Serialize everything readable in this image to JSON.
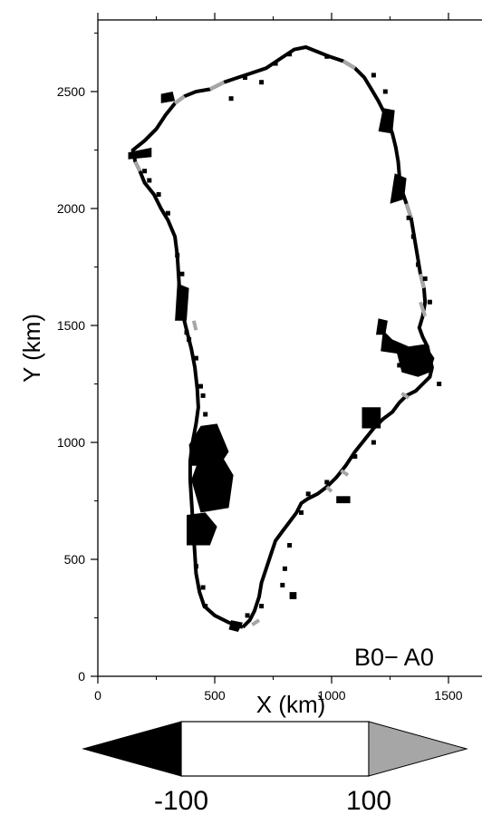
{
  "map": {
    "panel_label": "B0− A0",
    "x_axis": {
      "title": "X (km)",
      "range_km": [
        0,
        1650
      ],
      "ticks": [
        {
          "value": 0,
          "label": "0"
        },
        {
          "value": 500,
          "label": "500"
        },
        {
          "value": 1000,
          "label": "1000"
        },
        {
          "value": 1500,
          "label": "1500"
        }
      ]
    },
    "y_axis": {
      "title": "Y (km)",
      "range_km": [
        0,
        2780
      ],
      "ticks": [
        {
          "value": 0,
          "label": "0"
        },
        {
          "value": 500,
          "label": "500"
        },
        {
          "value": 1000,
          "label": "1000"
        },
        {
          "value": 1500,
          "label": "1500"
        },
        {
          "value": 2000,
          "label": "2000"
        },
        {
          "value": 2500,
          "label": "2500"
        }
      ]
    },
    "colors": {
      "below": "#000000",
      "above": "#a6a6a6",
      "neutral": "#ffffff",
      "outline": "#000000"
    },
    "coast_black_km": [
      [
        620,
        210
      ],
      [
        560,
        230
      ],
      [
        500,
        260
      ],
      [
        455,
        300
      ],
      [
        435,
        360
      ],
      [
        420,
        440
      ],
      [
        415,
        520
      ],
      [
        410,
        600
      ],
      [
        405,
        680
      ],
      [
        400,
        760
      ],
      [
        395,
        840
      ],
      [
        395,
        920
      ],
      [
        405,
        1000
      ],
      [
        420,
        1080
      ],
      [
        430,
        1150
      ],
      [
        425,
        1230
      ],
      [
        415,
        1320
      ],
      [
        400,
        1400
      ],
      [
        380,
        1480
      ],
      [
        360,
        1560
      ],
      [
        350,
        1640
      ],
      [
        345,
        1720
      ],
      [
        340,
        1800
      ],
      [
        330,
        1880
      ],
      [
        300,
        1950
      ],
      [
        270,
        2000
      ],
      [
        240,
        2060
      ],
      [
        200,
        2110
      ],
      [
        180,
        2160
      ],
      [
        160,
        2200
      ],
      [
        150,
        2250
      ],
      [
        200,
        2290
      ],
      [
        250,
        2340
      ],
      [
        290,
        2400
      ],
      [
        330,
        2450
      ],
      [
        370,
        2480
      ],
      [
        420,
        2500
      ],
      [
        480,
        2510
      ],
      [
        540,
        2540
      ],
      [
        600,
        2560
      ],
      [
        660,
        2580
      ],
      [
        720,
        2600
      ],
      [
        780,
        2640
      ],
      [
        840,
        2680
      ],
      [
        890,
        2690
      ],
      [
        940,
        2670
      ],
      [
        990,
        2650
      ],
      [
        1050,
        2630
      ],
      [
        1100,
        2600
      ],
      [
        1140,
        2560
      ],
      [
        1170,
        2510
      ],
      [
        1200,
        2460
      ],
      [
        1220,
        2420
      ],
      [
        1240,
        2380
      ],
      [
        1260,
        2320
      ],
      [
        1275,
        2260
      ],
      [
        1285,
        2200
      ],
      [
        1290,
        2140
      ],
      [
        1300,
        2080
      ],
      [
        1320,
        2020
      ],
      [
        1340,
        1960
      ],
      [
        1350,
        1900
      ],
      [
        1360,
        1840
      ],
      [
        1370,
        1780
      ],
      [
        1380,
        1720
      ],
      [
        1395,
        1660
      ],
      [
        1400,
        1600
      ],
      [
        1390,
        1540
      ],
      [
        1375,
        1490
      ],
      [
        1390,
        1450
      ],
      [
        1410,
        1410
      ],
      [
        1420,
        1360
      ],
      [
        1430,
        1320
      ],
      [
        1420,
        1280
      ],
      [
        1390,
        1250
      ],
      [
        1360,
        1220
      ],
      [
        1320,
        1200
      ],
      [
        1290,
        1170
      ],
      [
        1260,
        1130
      ],
      [
        1220,
        1100
      ],
      [
        1180,
        1060
      ],
      [
        1140,
        1010
      ],
      [
        1100,
        960
      ],
      [
        1060,
        900
      ],
      [
        1020,
        850
      ],
      [
        980,
        810
      ],
      [
        940,
        780
      ],
      [
        900,
        760
      ],
      [
        870,
        740
      ],
      [
        850,
        700
      ],
      [
        820,
        660
      ],
      [
        790,
        620
      ],
      [
        760,
        580
      ],
      [
        740,
        520
      ],
      [
        720,
        460
      ],
      [
        700,
        400
      ],
      [
        690,
        340
      ],
      [
        670,
        280
      ],
      [
        650,
        240
      ],
      [
        620,
        210
      ]
    ],
    "coast_gray_km": [
      [
        [
          480,
          2510
        ],
        [
          540,
          2540
        ]
      ],
      [
        [
          330,
          2450
        ],
        [
          370,
          2480
        ]
      ],
      [
        [
          160,
          2200
        ],
        [
          180,
          2160
        ]
      ],
      [
        [
          1050,
          2630
        ],
        [
          1100,
          2600
        ]
      ],
      [
        [
          1320,
          2020
        ],
        [
          1340,
          1960
        ]
      ],
      [
        [
          1380,
          1720
        ],
        [
          1395,
          1660
        ]
      ],
      [
        [
          1380,
          1600
        ],
        [
          1400,
          1540
        ]
      ],
      [
        [
          1300,
          1210
        ],
        [
          1330,
          1190
        ]
      ],
      [
        [
          1040,
          880
        ],
        [
          1070,
          860
        ]
      ],
      [
        [
          980,
          810
        ],
        [
          1000,
          790
        ]
      ],
      [
        [
          410,
          1520
        ],
        [
          420,
          1480
        ]
      ],
      [
        [
          660,
          220
        ],
        [
          690,
          240
        ]
      ]
    ],
    "black_patches_km": [
      [
        [
          440,
          700
        ],
        [
          560,
          720
        ],
        [
          580,
          860
        ],
        [
          520,
          960
        ],
        [
          440,
          950
        ],
        [
          400,
          840
        ]
      ],
      [
        [
          380,
          560
        ],
        [
          480,
          560
        ],
        [
          510,
          640
        ],
        [
          460,
          700
        ],
        [
          380,
          690
        ]
      ],
      [
        [
          400,
          900
        ],
        [
          520,
          900
        ],
        [
          560,
          960
        ],
        [
          510,
          1080
        ],
        [
          440,
          1070
        ],
        [
          390,
          990
        ]
      ],
      [
        [
          330,
          1520
        ],
        [
          380,
          1520
        ],
        [
          390,
          1660
        ],
        [
          340,
          1680
        ]
      ],
      [
        [
          1130,
          1060
        ],
        [
          1210,
          1060
        ],
        [
          1210,
          1150
        ],
        [
          1130,
          1150
        ]
      ],
      [
        [
          1210,
          1390
        ],
        [
          1280,
          1380
        ],
        [
          1300,
          1300
        ],
        [
          1370,
          1280
        ],
        [
          1420,
          1300
        ],
        [
          1440,
          1360
        ],
        [
          1400,
          1420
        ],
        [
          1330,
          1410
        ],
        [
          1260,
          1440
        ],
        [
          1220,
          1480
        ]
      ],
      [
        [
          1190,
          1460
        ],
        [
          1230,
          1460
        ],
        [
          1240,
          1520
        ],
        [
          1200,
          1530
        ]
      ],
      [
        [
          1250,
          2020
        ],
        [
          1310,
          2040
        ],
        [
          1320,
          2130
        ],
        [
          1270,
          2150
        ]
      ],
      [
        [
          1200,
          2330
        ],
        [
          1260,
          2320
        ],
        [
          1270,
          2420
        ],
        [
          1220,
          2430
        ]
      ],
      [
        [
          130,
          2240
        ],
        [
          230,
          2260
        ],
        [
          230,
          2220
        ],
        [
          130,
          2210
        ]
      ],
      [
        [
          270,
          2450
        ],
        [
          330,
          2460
        ],
        [
          320,
          2500
        ],
        [
          270,
          2490
        ]
      ],
      [
        [
          1020,
          740
        ],
        [
          1080,
          740
        ],
        [
          1080,
          770
        ],
        [
          1020,
          770
        ]
      ],
      [
        [
          560,
          200
        ],
        [
          600,
          190
        ],
        [
          620,
          230
        ],
        [
          570,
          240
        ]
      ],
      [
        [
          820,
          330
        ],
        [
          850,
          330
        ],
        [
          850,
          360
        ],
        [
          820,
          360
        ]
      ]
    ],
    "speckles_km": [
      [
        200,
        2160
      ],
      [
        220,
        2120
      ],
      [
        260,
        2060
      ],
      [
        300,
        1980
      ],
      [
        340,
        1800
      ],
      [
        360,
        1720
      ],
      [
        380,
        1470
      ],
      [
        390,
        1440
      ],
      [
        420,
        1360
      ],
      [
        440,
        1240
      ],
      [
        450,
        1200
      ],
      [
        460,
        1120
      ],
      [
        570,
        2470
      ],
      [
        630,
        2560
      ],
      [
        700,
        2540
      ],
      [
        760,
        2620
      ],
      [
        820,
        2660
      ],
      [
        980,
        2650
      ],
      [
        1180,
        2570
      ],
      [
        1230,
        2500
      ],
      [
        1330,
        1960
      ],
      [
        1350,
        1880
      ],
      [
        1370,
        1760
      ],
      [
        1400,
        1700
      ],
      [
        1420,
        1600
      ],
      [
        1290,
        1330
      ],
      [
        1460,
        1250
      ],
      [
        1180,
        1000
      ],
      [
        1100,
        940
      ],
      [
        980,
        830
      ],
      [
        900,
        780
      ],
      [
        870,
        700
      ],
      [
        820,
        560
      ],
      [
        800,
        460
      ],
      [
        790,
        390
      ],
      [
        700,
        300
      ],
      [
        460,
        300
      ],
      [
        450,
        380
      ],
      [
        420,
        470
      ],
      [
        640,
        260
      ]
    ]
  },
  "colorbar": {
    "ticks": [
      {
        "value": -100,
        "label": "-100"
      },
      {
        "value": 100,
        "label": "100"
      }
    ]
  }
}
